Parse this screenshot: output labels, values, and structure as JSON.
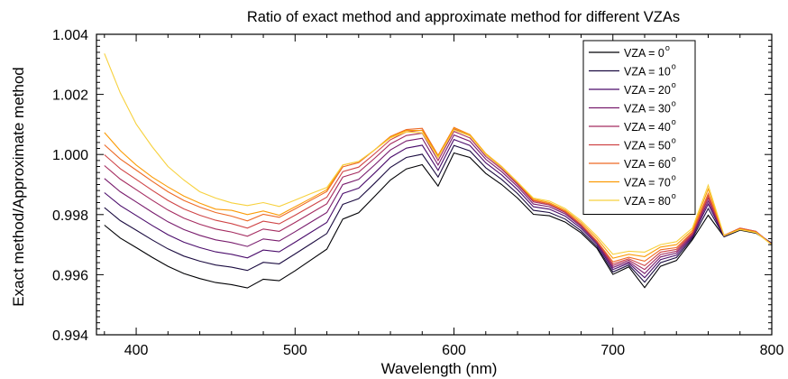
{
  "chart_data": {
    "type": "line",
    "title": "Ratio of exact method and approximate method for different VZAs",
    "xlabel": "Wavelength (nm)",
    "ylabel": "Exact method/Approximate method",
    "xlim": [
      375,
      800
    ],
    "ylim": [
      0.994,
      1.004
    ],
    "xticks": [
      400,
      500,
      600,
      700,
      800
    ],
    "xtick_labels": [
      "400",
      "500",
      "600",
      "700",
      "800"
    ],
    "yticks": [
      0.994,
      0.996,
      0.998,
      1.0,
      1.002,
      1.004
    ],
    "ytick_labels": [
      "0.994",
      "0.996",
      "0.998",
      "1.000",
      "1.002",
      "1.004"
    ],
    "grid": false,
    "legend_position": "top-right",
    "x": [
      380,
      390,
      400,
      410,
      420,
      430,
      440,
      450,
      460,
      470,
      480,
      490,
      500,
      510,
      520,
      530,
      540,
      550,
      560,
      570,
      580,
      590,
      600,
      610,
      620,
      630,
      640,
      650,
      660,
      670,
      680,
      690,
      700,
      710,
      720,
      730,
      740,
      750,
      760,
      770,
      780,
      790,
      800
    ],
    "series": [
      {
        "name": "VZA = 0",
        "color": "#000004",
        "values": [
          0.99765,
          0.99722,
          0.9969,
          0.99658,
          0.99628,
          0.99604,
          0.99587,
          0.99574,
          0.99567,
          0.99556,
          0.99585,
          0.9958,
          0.99613,
          0.99649,
          0.99685,
          0.99785,
          0.99806,
          0.9986,
          0.99915,
          0.99952,
          0.99966,
          0.99895,
          1.00005,
          0.9999,
          0.99937,
          0.999,
          0.99855,
          0.99801,
          0.99796,
          0.99775,
          0.99739,
          0.99688,
          0.99601,
          0.99626,
          0.99557,
          0.99628,
          0.99647,
          0.99716,
          0.99798,
          0.99726,
          0.99748,
          0.99738,
          0.99705
        ]
      },
      {
        "name": "VZA = 10",
        "color": "#1b0c41",
        "values": [
          0.99823,
          0.9978,
          0.99748,
          0.99716,
          0.99686,
          0.99662,
          0.99645,
          0.99632,
          0.99625,
          0.99614,
          0.99641,
          0.99636,
          0.99669,
          0.99703,
          0.99737,
          0.99834,
          0.99853,
          0.99904,
          0.99957,
          0.9999,
          1.00001,
          0.99925,
          1.0003,
          1.00012,
          0.99956,
          0.99917,
          0.9987,
          0.99814,
          0.99807,
          0.99785,
          0.99746,
          0.99694,
          0.99609,
          0.99632,
          0.99575,
          0.9964,
          0.99657,
          0.99721,
          0.9982,
          0.99727,
          0.9975,
          0.9974,
          0.99704
        ]
      },
      {
        "name": "VZA = 20",
        "color": "#4a0c6b",
        "values": [
          0.99873,
          0.9983,
          0.99797,
          0.99764,
          0.99733,
          0.99708,
          0.9969,
          0.99676,
          0.99668,
          0.99656,
          0.99682,
          0.99676,
          0.99708,
          0.99741,
          0.99774,
          0.9987,
          0.99888,
          0.99938,
          0.9999,
          1.00021,
          1.00031,
          0.99947,
          1.0005,
          1.0003,
          0.99972,
          0.99932,
          0.99883,
          0.99826,
          0.99818,
          0.99795,
          0.99754,
          0.99701,
          0.99617,
          0.99638,
          0.9959,
          0.9965,
          0.99665,
          0.99726,
          0.99835,
          0.99728,
          0.99752,
          0.99742,
          0.99703
        ]
      },
      {
        "name": "VZA = 30",
        "color": "#781c6d",
        "values": [
          0.9992,
          0.99876,
          0.99842,
          0.99808,
          0.99776,
          0.9975,
          0.99731,
          0.99716,
          0.99707,
          0.99694,
          0.99719,
          0.99712,
          0.99743,
          0.99775,
          0.99807,
          0.999,
          0.99917,
          0.99965,
          1.00015,
          1.00045,
          1.00054,
          0.99965,
          1.00065,
          1.00044,
          0.99984,
          0.99943,
          0.99893,
          0.99835,
          0.99826,
          0.99802,
          0.9976,
          0.99706,
          0.99624,
          0.99643,
          0.99604,
          0.99659,
          0.99672,
          0.9973,
          0.99845,
          0.99729,
          0.99754,
          0.99743,
          0.99702
        ]
      },
      {
        "name": "VZA = 40",
        "color": "#a52c60",
        "values": [
          0.99963,
          0.99918,
          0.99883,
          0.99848,
          0.99815,
          0.99788,
          0.99768,
          0.99752,
          0.99742,
          0.99728,
          0.99752,
          0.99744,
          0.99774,
          0.99805,
          0.99836,
          0.99925,
          0.99941,
          0.99987,
          1.00035,
          1.00063,
          1.00071,
          0.9998,
          1.00077,
          1.00055,
          0.99993,
          0.99951,
          0.999,
          0.99842,
          0.99832,
          0.99807,
          0.99764,
          0.99709,
          0.9963,
          0.99648,
          0.99617,
          0.99667,
          0.99678,
          0.99734,
          0.99855,
          0.9973,
          0.99755,
          0.99744,
          0.99701
        ]
      },
      {
        "name": "VZA = 50",
        "color": "#cf4446",
        "values": [
          0.99999,
          0.99953,
          0.99917,
          0.99881,
          0.99847,
          0.99819,
          0.99798,
          0.99781,
          0.9977,
          0.99755,
          0.99778,
          0.99769,
          0.99798,
          0.99828,
          0.99858,
          0.99943,
          0.99958,
          1.00002,
          1.00049,
          1.00075,
          1.00081,
          0.9999,
          1.00085,
          1.00062,
          0.99999,
          0.99956,
          0.99904,
          0.99846,
          0.99835,
          0.9981,
          0.99767,
          0.99711,
          0.99636,
          0.99653,
          0.9963,
          0.99675,
          0.99684,
          0.99738,
          0.99863,
          0.99731,
          0.99755,
          0.99744,
          0.997
        ]
      },
      {
        "name": "VZA = 60",
        "color": "#ed6925",
        "values": [
          1.00032,
          0.99985,
          0.99948,
          0.99911,
          0.99876,
          0.99847,
          0.99825,
          0.99807,
          0.99795,
          0.99779,
          0.99801,
          0.99791,
          0.99819,
          0.99848,
          0.99877,
          0.99959,
          0.99973,
          1.00015,
          1.0006,
          1.00083,
          1.00087,
          0.99997,
          1.0009,
          1.00066,
          1.00002,
          0.99958,
          0.99906,
          0.99848,
          0.99836,
          0.99811,
          0.99768,
          0.99712,
          0.99643,
          0.99658,
          0.99645,
          0.99683,
          0.9969,
          0.99742,
          0.9987,
          0.99731,
          0.99754,
          0.99743,
          0.997
        ]
      },
      {
        "name": "VZA = 70",
        "color": "#fb9b06",
        "values": [
          1.00073,
          1.00013,
          0.99965,
          0.99925,
          0.99892,
          0.99862,
          0.99838,
          0.99818,
          0.99814,
          0.998,
          0.99812,
          0.99798,
          0.99826,
          0.99854,
          0.99883,
          0.99965,
          0.99977,
          1.00015,
          1.00058,
          1.0008,
          1.0008,
          0.99995,
          1.00088,
          1.00066,
          1.00003,
          0.9996,
          0.99908,
          0.99852,
          0.9984,
          0.99815,
          0.99774,
          0.9972,
          0.99655,
          0.99668,
          0.9966,
          0.99692,
          0.997,
          0.99748,
          0.99885,
          0.9973,
          0.99752,
          0.99741,
          0.997
        ]
      },
      {
        "name": "VZA = 80",
        "color": "#f7d13d",
        "values": [
          1.00336,
          1.00205,
          1.00101,
          1.00026,
          0.9996,
          0.99915,
          0.99876,
          0.99855,
          0.99839,
          0.9983,
          0.9984,
          0.99827,
          0.99848,
          0.9987,
          0.9989,
          0.99965,
          0.99977,
          1.00015,
          1.00055,
          1.00075,
          1.00072,
          0.9999,
          1.00082,
          1.00062,
          1.0,
          0.99958,
          0.99908,
          0.99855,
          0.99845,
          0.9982,
          0.9978,
          0.99728,
          0.99668,
          0.99678,
          0.99675,
          0.997,
          0.9971,
          0.99755,
          0.99898,
          0.9973,
          0.9975,
          0.9974,
          0.997
        ]
      }
    ]
  }
}
